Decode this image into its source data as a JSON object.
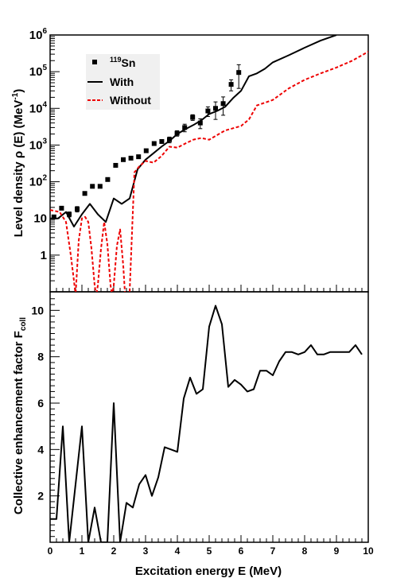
{
  "chart_data": [
    {
      "type": "scatter",
      "panel": "top",
      "y_scale": "log",
      "ylabel_main": "Level density ρ (E) (MeV",
      "ylabel_exp": "-1",
      "ylabel_close": ")",
      "xlim": [
        0,
        10
      ],
      "ylim": [
        0.1,
        1000000
      ],
      "grid": false,
      "legend_position": "top-left",
      "y_ticks": [
        {
          "value": 1000000,
          "base": "10",
          "exp": "6"
        },
        {
          "value": 100000,
          "base": "10",
          "exp": "5"
        },
        {
          "value": 10000,
          "base": "10",
          "exp": "4"
        },
        {
          "value": 1000,
          "base": "10",
          "exp": "3"
        },
        {
          "value": 100,
          "base": "10",
          "exp": "2"
        },
        {
          "value": 10,
          "base": "10",
          "exp": ""
        },
        {
          "value": 1,
          "base": "1",
          "exp": ""
        }
      ],
      "legend": [
        {
          "label_sup": "119",
          "label": "Sn",
          "marker": "square"
        },
        {
          "label_sup": "",
          "label": "With",
          "marker": "solid"
        },
        {
          "label_sup": "",
          "label": "Without",
          "marker": "dashed"
        }
      ],
      "series": [
        {
          "name": "119Sn",
          "style": "points",
          "color": "#000000",
          "points": [
            {
              "x": 0.12,
              "y": 11
            },
            {
              "x": 0.36,
              "y": 19
            },
            {
              "x": 0.6,
              "y": 13,
              "err": 2
            },
            {
              "x": 0.85,
              "y": 18,
              "err": 3
            },
            {
              "x": 1.09,
              "y": 48
            },
            {
              "x": 1.33,
              "y": 75
            },
            {
              "x": 1.57,
              "y": 75
            },
            {
              "x": 1.81,
              "y": 115,
              "err": 12
            },
            {
              "x": 2.06,
              "y": 280
            },
            {
              "x": 2.3,
              "y": 400
            },
            {
              "x": 2.54,
              "y": 440
            },
            {
              "x": 2.78,
              "y": 480
            },
            {
              "x": 3.02,
              "y": 700
            },
            {
              "x": 3.27,
              "y": 1100
            },
            {
              "x": 3.51,
              "y": 1250
            },
            {
              "x": 3.75,
              "y": 1400,
              "err": 250
            },
            {
              "x": 3.99,
              "y": 2100,
              "err": 350
            },
            {
              "x": 4.23,
              "y": 3000,
              "err": 700
            },
            {
              "x": 4.48,
              "y": 5700,
              "err": 1000
            },
            {
              "x": 4.72,
              "y": 4000,
              "err": 1200
            },
            {
              "x": 4.96,
              "y": 8500,
              "err": 2500
            },
            {
              "x": 5.2,
              "y": 10000,
              "err": 5000
            },
            {
              "x": 5.44,
              "y": 13500,
              "err": 7000
            },
            {
              "x": 5.69,
              "y": 45000,
              "err": 15000
            },
            {
              "x": 5.93,
              "y": 95000,
              "err": 60000
            }
          ]
        },
        {
          "name": "With",
          "style": "solid",
          "color": "#000000",
          "x": [
            0,
            0.25,
            0.5,
            0.75,
            1.0,
            1.25,
            1.5,
            1.75,
            2.0,
            2.25,
            2.5,
            2.75,
            3.0,
            3.25,
            3.5,
            3.75,
            4.0,
            4.25,
            4.5,
            4.75,
            5.0,
            5.25,
            5.5,
            5.75,
            6.0,
            6.25,
            6.5,
            6.75,
            7.0,
            7.5,
            8.0,
            8.5,
            9.0
          ],
          "y": [
            10,
            10,
            15,
            6,
            13,
            25,
            13,
            8,
            35,
            25,
            35,
            220,
            400,
            600,
            900,
            1300,
            2000,
            2700,
            3500,
            4700,
            7000,
            8500,
            11000,
            19000,
            30000,
            75000,
            90000,
            120000,
            180000,
            280000,
            450000,
            700000,
            1000000
          ]
        },
        {
          "name": "Without",
          "style": "dashed",
          "color": "#ee0000",
          "x": [
            0,
            0.3,
            0.5,
            0.65,
            0.75,
            0.8,
            0.9,
            1.0,
            1.1,
            1.2,
            1.3,
            1.4,
            1.45,
            1.5,
            1.6,
            1.7,
            1.8,
            1.9,
            1.95,
            2.0,
            2.1,
            2.2,
            2.3,
            2.35,
            2.4,
            2.45,
            2.5,
            2.65,
            2.8,
            3.0,
            3.25,
            3.5,
            3.75,
            4.0,
            4.25,
            4.5,
            4.75,
            5.0,
            5.5,
            6.0,
            6.25,
            6.5,
            7.0,
            7.5,
            8.0,
            8.5,
            9.0,
            9.5,
            10.0
          ],
          "y": [
            17,
            15,
            8,
            1,
            0.2,
            0.08,
            2.5,
            10,
            11,
            8,
            1.5,
            0.15,
            0.08,
            0.15,
            1.5,
            8,
            2,
            0.15,
            0.08,
            0.15,
            1.8,
            5,
            0.5,
            0.1,
            0.08,
            0.1,
            0.1,
            180,
            260,
            370,
            330,
            500,
            900,
            850,
            1100,
            1400,
            1550,
            1400,
            2500,
            3300,
            5000,
            12000,
            17000,
            35000,
            60000,
            90000,
            130000,
            200000,
            350000
          ]
        }
      ]
    },
    {
      "type": "line",
      "panel": "bottom",
      "ylabel_main": "Collective enhancement factor F",
      "ylabel_sub": "coll",
      "xlabel": "Excitation energy E (MeV)",
      "xlim": [
        0,
        10
      ],
      "ylim": [
        0,
        10.8
      ],
      "grid": false,
      "x_ticks": [
        "0",
        "1",
        "2",
        "3",
        "4",
        "5",
        "6",
        "7",
        "8",
        "9",
        "10"
      ],
      "y_ticks": [
        "2",
        "4",
        "6",
        "8",
        "10"
      ],
      "series": [
        {
          "name": "F_coll",
          "color": "#000000",
          "x": [
            0,
            0.2,
            0.4,
            0.6,
            0.8,
            1.0,
            1.2,
            1.4,
            1.6,
            1.8,
            2.0,
            2.2,
            2.4,
            2.6,
            2.8,
            3.0,
            3.2,
            3.4,
            3.6,
            3.8,
            4.0,
            4.2,
            4.4,
            4.6,
            4.8,
            5.0,
            5.2,
            5.4,
            5.6,
            5.8,
            6.0,
            6.2,
            6.4,
            6.6,
            6.8,
            7.0,
            7.2,
            7.4,
            7.6,
            7.8,
            8.0,
            8.2,
            8.4,
            8.6,
            8.8,
            9.0,
            9.2,
            9.4,
            9.6,
            9.8
          ],
          "y": [
            1.0,
            1.0,
            5.0,
            0.0,
            2.5,
            5.0,
            0.0,
            1.5,
            0.0,
            0.0,
            6.0,
            0.0,
            1.7,
            1.5,
            2.5,
            2.9,
            2.0,
            2.8,
            4.1,
            4.0,
            3.9,
            6.2,
            7.1,
            6.4,
            6.6,
            9.3,
            10.2,
            9.4,
            6.7,
            7.0,
            6.8,
            6.5,
            6.6,
            7.4,
            7.4,
            7.2,
            7.8,
            8.2,
            8.2,
            8.1,
            8.2,
            8.5,
            8.1,
            8.1,
            8.2,
            8.2,
            8.2,
            8.2,
            8.5,
            8.1
          ]
        }
      ]
    }
  ]
}
